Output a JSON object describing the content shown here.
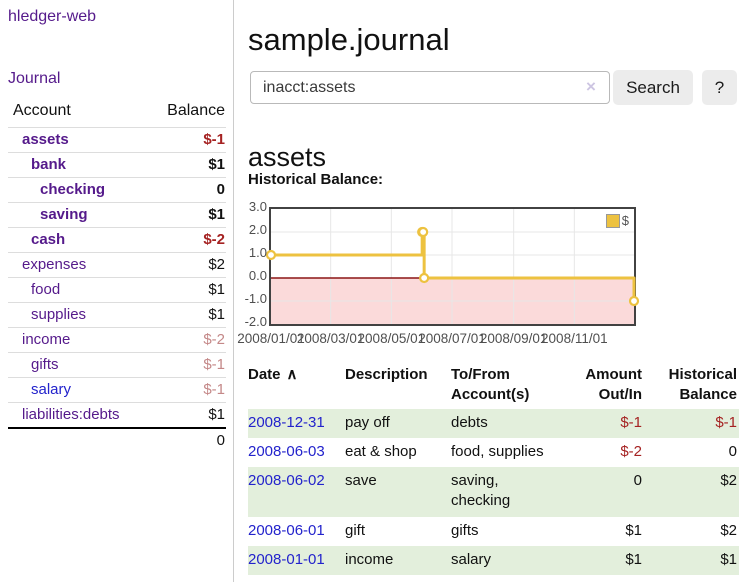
{
  "app": {
    "title": "hledger-web"
  },
  "colors": {
    "purple_link": "#551a8b",
    "blue_link": "#2323cc",
    "negative_strong": "#a52222",
    "negative_soft": "#c48888",
    "row_shade_green": "#e3efdc",
    "series_gold": "#edc240"
  },
  "sidebar": {
    "journal_link": "Journal",
    "headers": {
      "account": "Account",
      "balance": "Balance"
    },
    "accounts": [
      {
        "name": "assets",
        "indent": 1,
        "bold": true,
        "link_color": "purple",
        "balance": "$-1",
        "balance_color": "negstrong"
      },
      {
        "name": "bank",
        "indent": 2,
        "bold": true,
        "link_color": "purple",
        "balance": "$1",
        "balance_color": "default"
      },
      {
        "name": "checking",
        "indent": 3,
        "bold": true,
        "link_color": "purple",
        "balance": "0",
        "balance_color": "default"
      },
      {
        "name": "saving",
        "indent": 3,
        "bold": true,
        "link_color": "purple",
        "balance": "$1",
        "balance_color": "default"
      },
      {
        "name": "cash",
        "indent": 2,
        "bold": true,
        "link_color": "purple",
        "balance": "$-2",
        "balance_color": "negstrong"
      },
      {
        "name": "expenses",
        "indent": 1,
        "bold": false,
        "link_color": "purple",
        "balance": "$2",
        "balance_color": "default"
      },
      {
        "name": "food",
        "indent": 2,
        "bold": false,
        "link_color": "purple",
        "balance": "$1",
        "balance_color": "default"
      },
      {
        "name": "supplies",
        "indent": 2,
        "bold": false,
        "link_color": "purple",
        "balance": "$1",
        "balance_color": "default"
      },
      {
        "name": "income",
        "indent": 1,
        "bold": false,
        "link_color": "purple",
        "balance": "$-2",
        "balance_color": "negsoft"
      },
      {
        "name": "gifts",
        "indent": 2,
        "bold": false,
        "link_color": "purple",
        "balance": "$-1",
        "balance_color": "negsoft"
      },
      {
        "name": "salary",
        "indent": 2,
        "bold": false,
        "link_color": "blue",
        "balance": "$-1",
        "balance_color": "negsoft"
      },
      {
        "name": "liabilities:debts",
        "indent": 1,
        "bold": false,
        "link_color": "purple",
        "balance": "$1",
        "balance_color": "default"
      }
    ],
    "total": "0"
  },
  "main": {
    "title": "sample.journal",
    "search": {
      "query": "inacct:assets",
      "clear_icon": "×",
      "button": "Search",
      "help": "?"
    },
    "account_heading": "assets",
    "chart_label": "Historical Balance:"
  },
  "chart_data": {
    "type": "line",
    "step": true,
    "title": "Historical Balance",
    "series": [
      {
        "name": "$",
        "color": "#edc240",
        "points": [
          {
            "date": "2008-01-01",
            "value": 1
          },
          {
            "date": "2008-06-01",
            "value": 2
          },
          {
            "date": "2008-06-02",
            "value": 2
          },
          {
            "date": "2008-06-03",
            "value": 0
          },
          {
            "date": "2008-12-31",
            "value": -1
          }
        ]
      }
    ],
    "x_ticks": [
      "2008/01/01",
      "2008/03/01",
      "2008/05/01",
      "2008/07/01",
      "2008/09/01",
      "2008/11/01"
    ],
    "y_ticks": [
      "3.0",
      "2.0",
      "1.0",
      "0.0",
      "-1.0",
      "-2.0"
    ],
    "ylim": [
      -2,
      3
    ],
    "xlim": [
      "2008-01-01",
      "2008-12-31"
    ],
    "grid": true,
    "legend": {
      "label": "$",
      "position": "top-right"
    },
    "negative_region_color": "#fbdada",
    "zero_line_color": "#8b1515",
    "grid_color": "#e7e7e7"
  },
  "register": {
    "headers": {
      "date": "Date",
      "sort_icon": "∧",
      "description": "Description",
      "accounts": "To/From Account(s)",
      "amount": "Amount Out/In",
      "balance": "Historical Balance"
    },
    "rows": [
      {
        "date": "2008-12-31",
        "description": "pay off",
        "accounts": "debts",
        "amount": "$-1",
        "amount_negative": true,
        "balance": "$-1",
        "balance_negative": true,
        "shaded": true
      },
      {
        "date": "2008-06-03",
        "description": "eat & shop",
        "accounts": "food, supplies",
        "amount": "$-2",
        "amount_negative": true,
        "balance": "0",
        "balance_negative": false,
        "shaded": false
      },
      {
        "date": "2008-06-02",
        "description": "save",
        "accounts": "saving, checking",
        "amount": "0",
        "amount_negative": false,
        "balance": "$2",
        "balance_negative": false,
        "shaded": true
      },
      {
        "date": "2008-06-01",
        "description": "gift",
        "accounts": "gifts",
        "amount": "$1",
        "amount_negative": false,
        "balance": "$2",
        "balance_negative": false,
        "shaded": false
      },
      {
        "date": "2008-01-01",
        "description": "income",
        "accounts": "salary",
        "amount": "$1",
        "amount_negative": false,
        "balance": "$1",
        "balance_negative": false,
        "shaded": true
      }
    ]
  }
}
